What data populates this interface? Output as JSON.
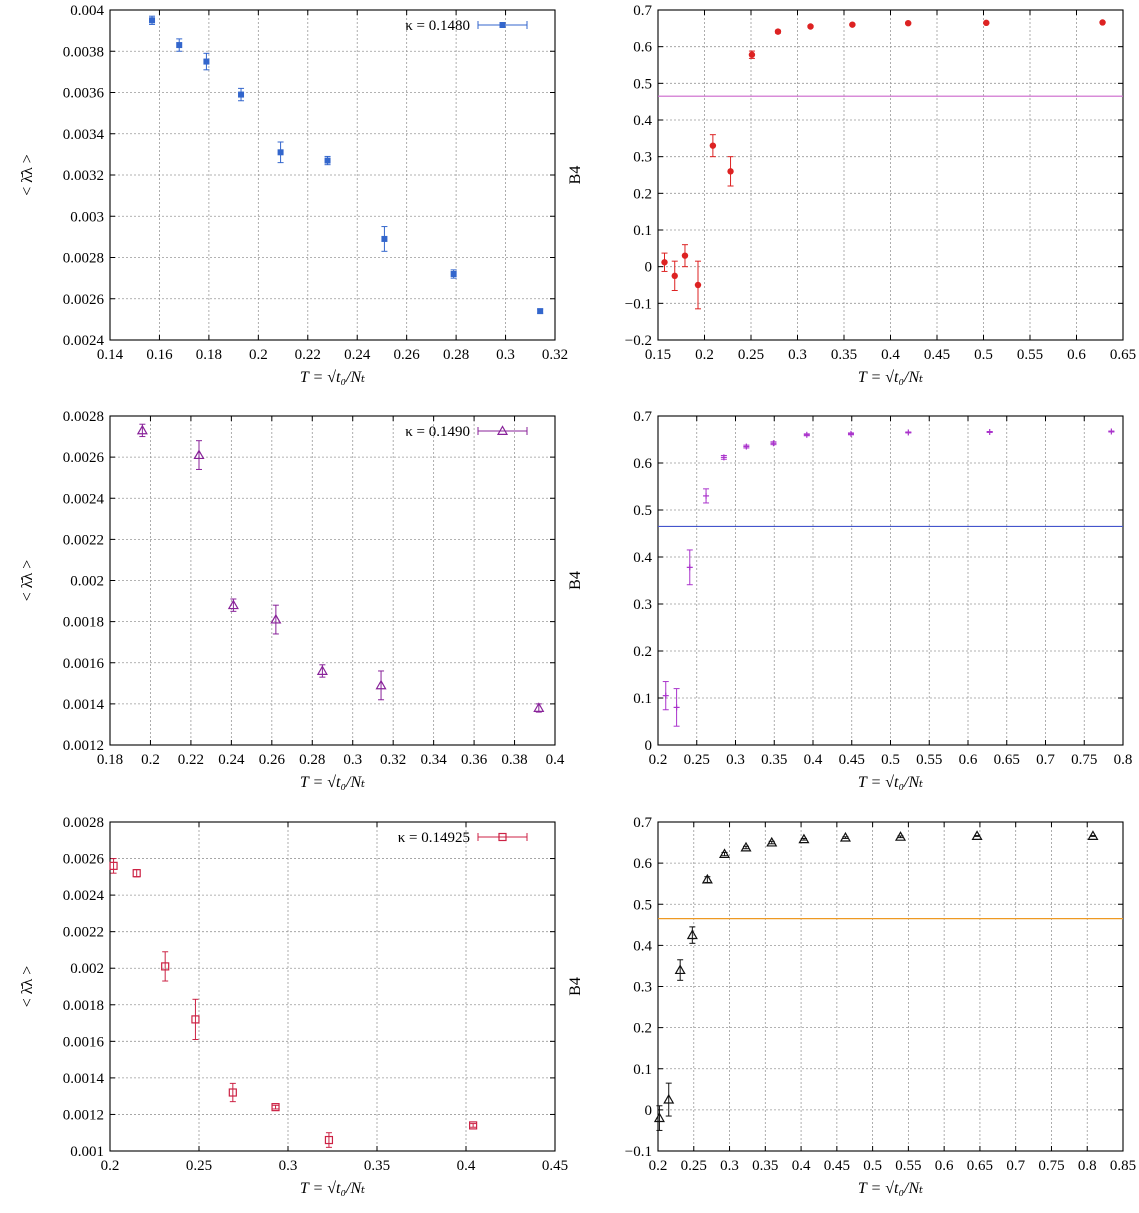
{
  "chart_data": [
    {
      "type": "scatter",
      "xlabel": "T = √t₀/Nₜ",
      "ylabel": "< λ̄λ >",
      "xlim": [
        0.14,
        0.32
      ],
      "ylim": [
        0.0024,
        0.004
      ],
      "xticks": [
        "0.14",
        "0.16",
        "0.18",
        "0.2",
        "0.22",
        "0.24",
        "0.26",
        "0.28",
        "0.3",
        "0.32"
      ],
      "yticks": [
        "0.0024",
        "0.0026",
        "0.0028",
        "0.003",
        "0.0032",
        "0.0034",
        "0.0036",
        "0.0038",
        "0.004"
      ],
      "grid": true,
      "legend": "top-right",
      "series": [
        {
          "name": "κ = 0.1480",
          "color": "#3366cc",
          "marker": "filled-square",
          "x": [
            0.157,
            0.168,
            0.179,
            0.193,
            0.209,
            0.228,
            0.251,
            0.279,
            0.314
          ],
          "y": [
            0.00395,
            0.00383,
            0.00375,
            0.00359,
            0.00331,
            0.00327,
            0.00289,
            0.00272,
            0.00254
          ],
          "err": [
            2e-05,
            3e-05,
            4e-05,
            3e-05,
            5e-05,
            2e-05,
            6e-05,
            2e-05,
            1e-05
          ]
        }
      ]
    },
    {
      "type": "scatter",
      "xlabel": "T = √t₀/Nₜ",
      "ylabel": "B4",
      "xlim": [
        0.15,
        0.65
      ],
      "ylim": [
        -0.2,
        0.7
      ],
      "xticks": [
        "0.15",
        "0.2",
        "0.25",
        "0.3",
        "0.35",
        "0.4",
        "0.45",
        "0.5",
        "0.55",
        "0.6",
        "0.65"
      ],
      "yticks": [
        "−0.2",
        "−0.1",
        "0",
        "0.1",
        "0.2",
        "0.3",
        "0.4",
        "0.5",
        "0.6",
        "0.7"
      ],
      "grid": true,
      "hline": {
        "y": 0.465,
        "color": "#cc66cc"
      },
      "series": [
        {
          "color": "#dd2222",
          "marker": "filled-circle",
          "x": [
            0.157,
            0.168,
            0.179,
            0.193,
            0.209,
            0.228,
            0.251,
            0.279,
            0.314,
            0.359,
            0.419,
            0.503,
            0.628
          ],
          "y": [
            0.012,
            -0.025,
            0.03,
            -0.05,
            0.33,
            0.26,
            0.578,
            0.641,
            0.655,
            0.66,
            0.664,
            0.665,
            0.666
          ],
          "err": [
            0.025,
            0.04,
            0.03,
            0.065,
            0.03,
            0.04,
            0.01,
            0.004,
            0.003,
            0.002,
            0.002,
            0.002,
            0.001
          ]
        }
      ]
    },
    {
      "type": "scatter",
      "xlabel": "T = √t₀/Nₜ",
      "ylabel": "< λ̄λ >",
      "xlim": [
        0.18,
        0.4
      ],
      "ylim": [
        0.0012,
        0.0028
      ],
      "xticks": [
        "0.18",
        "0.2",
        "0.22",
        "0.24",
        "0.26",
        "0.28",
        "0.3",
        "0.32",
        "0.34",
        "0.36",
        "0.38",
        "0.4"
      ],
      "yticks": [
        "0.0012",
        "0.0014",
        "0.0016",
        "0.0018",
        "0.002",
        "0.0022",
        "0.0024",
        "0.0026",
        "0.0028"
      ],
      "grid": true,
      "legend": "top-right",
      "series": [
        {
          "name": "κ = 0.1490",
          "color": "#882299",
          "marker": "open-triangle",
          "x": [
            0.196,
            0.224,
            0.241,
            0.262,
            0.285,
            0.314,
            0.392
          ],
          "y": [
            0.00273,
            0.00261,
            0.00188,
            0.00181,
            0.00156,
            0.00149,
            0.00138
          ],
          "err": [
            3e-05,
            7e-05,
            3e-05,
            7e-05,
            3e-05,
            7e-05,
            2e-05
          ]
        }
      ]
    },
    {
      "type": "scatter",
      "xlabel": "T = √t₀/Nₜ",
      "ylabel": "B4",
      "xlim": [
        0.2,
        0.8
      ],
      "ylim": [
        0,
        0.7
      ],
      "xticks": [
        "0.2",
        "0.25",
        "0.3",
        "0.35",
        "0.4",
        "0.45",
        "0.5",
        "0.55",
        "0.6",
        "0.65",
        "0.7",
        "0.75",
        "0.8"
      ],
      "yticks": [
        "0",
        "0.1",
        "0.2",
        "0.3",
        "0.4",
        "0.5",
        "0.6",
        "0.7"
      ],
      "grid": true,
      "hline": {
        "y": 0.465,
        "color": "#4455cc"
      },
      "series": [
        {
          "color": "#aa33cc",
          "marker": "plus",
          "x": [
            0.21,
            0.224,
            0.241,
            0.262,
            0.285,
            0.314,
            0.349,
            0.392,
            0.449,
            0.523,
            0.628,
            0.785
          ],
          "y": [
            0.105,
            0.08,
            0.378,
            0.53,
            0.612,
            0.635,
            0.642,
            0.66,
            0.662,
            0.665,
            0.666,
            0.667
          ],
          "err": [
            0.03,
            0.04,
            0.037,
            0.015,
            0.004,
            0.003,
            0.003,
            0.002,
            0.002,
            0.001,
            0.001,
            0.001
          ]
        }
      ]
    },
    {
      "type": "scatter",
      "xlabel": "T = √t₀/Nₜ",
      "ylabel": "< λ̄λ >",
      "xlim": [
        0.2,
        0.45
      ],
      "ylim": [
        0.001,
        0.0028
      ],
      "xticks": [
        "0.2",
        "0.25",
        "0.3",
        "0.35",
        "0.4",
        "0.45"
      ],
      "yticks": [
        "0.001",
        "0.0012",
        "0.0014",
        "0.0016",
        "0.0018",
        "0.002",
        "0.0022",
        "0.0024",
        "0.0026",
        "0.0028"
      ],
      "grid": true,
      "legend": "top-right",
      "series": [
        {
          "name": "κ = 0.14925",
          "color": "#cc2244",
          "marker": "open-square",
          "x": [
            0.202,
            0.215,
            0.231,
            0.248,
            0.269,
            0.293,
            0.323,
            0.404
          ],
          "y": [
            0.00256,
            0.00252,
            0.00201,
            0.00172,
            0.00132,
            0.00124,
            0.00106,
            0.00114
          ],
          "err": [
            4e-05,
            2e-05,
            8e-05,
            0.00011,
            5e-05,
            1e-05,
            4e-05,
            1e-05
          ]
        }
      ]
    },
    {
      "type": "scatter",
      "xlabel": "T = √t₀/Nₜ",
      "ylabel": "B4",
      "xlim": [
        0.2,
        0.85
      ],
      "ylim": [
        -0.1,
        0.7
      ],
      "xticks": [
        "0.2",
        "0.25",
        "0.3",
        "0.35",
        "0.4",
        "0.45",
        "0.5",
        "0.55",
        "0.6",
        "0.65",
        "0.7",
        "0.75",
        "0.8",
        "0.85"
      ],
      "yticks": [
        "−0.1",
        "0",
        "0.1",
        "0.2",
        "0.3",
        "0.4",
        "0.5",
        "0.6",
        "0.7"
      ],
      "grid": true,
      "hline": {
        "y": 0.465,
        "color": "#ee9922"
      },
      "series": [
        {
          "color": "#111111",
          "marker": "open-triangle",
          "x": [
            0.202,
            0.215,
            0.231,
            0.248,
            0.269,
            0.293,
            0.323,
            0.359,
            0.404,
            0.462,
            0.539,
            0.646,
            0.808
          ],
          "y": [
            -0.02,
            0.025,
            0.34,
            0.425,
            0.56,
            0.622,
            0.638,
            0.65,
            0.658,
            0.662,
            0.664,
            0.666,
            0.666
          ],
          "err": [
            0.03,
            0.04,
            0.025,
            0.02,
            0.007,
            0.004,
            0.003,
            0.003,
            0.002,
            0.002,
            0.002,
            0.001,
            0.001
          ]
        }
      ]
    }
  ]
}
